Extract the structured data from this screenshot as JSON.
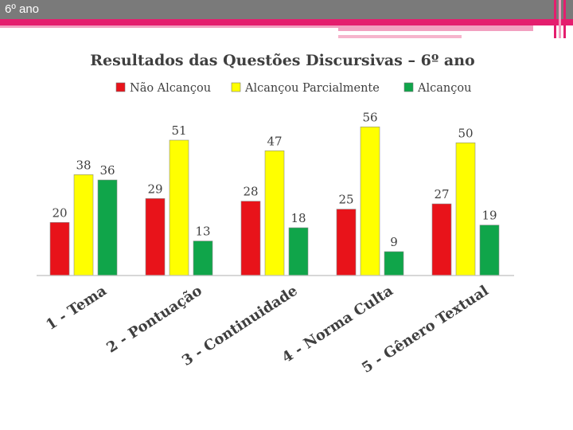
{
  "slide": {
    "title": "6º ano"
  },
  "colors": {
    "topbar": "#7a7a7a",
    "accent": "#e41e6e",
    "accent_light": "#f2a0c0"
  },
  "chart_data": {
    "type": "bar",
    "title": "Resultados das Questões Discursivas – 6º ano",
    "categories": [
      "1 - Tema",
      "2 - Pontuação",
      "3 - Continuidade",
      "4 - Norma Culta",
      "5 - Gênero Textual"
    ],
    "series": [
      {
        "name": "Não Alcançou",
        "color": "#e8131a",
        "values": [
          20,
          29,
          28,
          25,
          27
        ]
      },
      {
        "name": "Alcançou Parcialmente",
        "color": "#ffff00",
        "values": [
          38,
          51,
          47,
          56,
          50
        ]
      },
      {
        "name": "Alcançou",
        "color": "#10a54a",
        "values": [
          36,
          13,
          18,
          9,
          19
        ]
      }
    ],
    "ylim": [
      0,
      60
    ],
    "grid": false,
    "legend": "top",
    "data_labels": true
  }
}
